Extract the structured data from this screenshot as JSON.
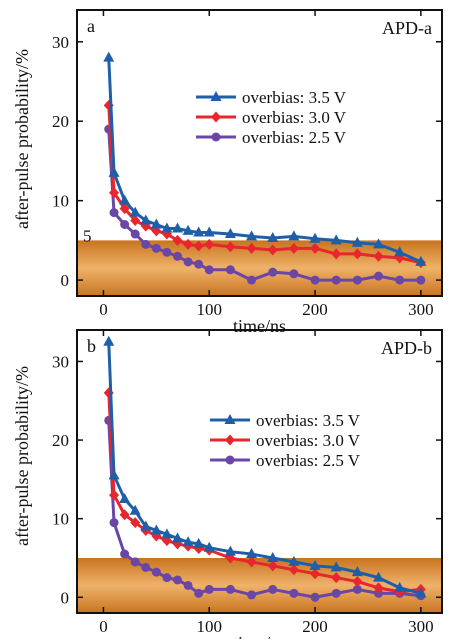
{
  "figure": {
    "ylabel": "after-pulse probability/%"
  },
  "chart_data": [
    {
      "type": "line",
      "letter": "a",
      "title": "APD-a",
      "xlabel": "time/ns",
      "ylabel": "after-pulse probability/%",
      "xlim": [
        -25,
        320
      ],
      "ylim": [
        -2,
        34
      ],
      "xticks": [
        0,
        100,
        200,
        300
      ],
      "yticks": [
        0,
        10,
        20,
        30
      ],
      "threshold": {
        "value": 5,
        "label": "5",
        "color": "#d98c3a"
      },
      "legend_position": "upper-right",
      "grid": false,
      "series": [
        {
          "name": "overbias: 3.5 V",
          "color": "#1f5fa8",
          "marker": "triangle",
          "x": [
            5,
            10,
            20,
            30,
            40,
            50,
            60,
            70,
            80,
            90,
            100,
            120,
            140,
            160,
            180,
            200,
            220,
            240,
            260,
            280,
            300
          ],
          "y": [
            28,
            13.5,
            10,
            8.5,
            7.5,
            7,
            6.5,
            6.5,
            6.2,
            6,
            6,
            5.8,
            5.5,
            5.3,
            5.5,
            5.2,
            5,
            4.7,
            4.5,
            3.5,
            2.3
          ]
        },
        {
          "name": "overbias: 3.0 V",
          "color": "#e8262e",
          "marker": "diamond",
          "x": [
            5,
            10,
            20,
            30,
            40,
            50,
            60,
            70,
            80,
            90,
            100,
            120,
            140,
            160,
            180,
            200,
            220,
            240,
            260,
            280,
            300
          ],
          "y": [
            22,
            11,
            9,
            7.5,
            6.8,
            6.2,
            5.8,
            5,
            4.5,
            4.3,
            4.5,
            4.2,
            4,
            3.8,
            4,
            4,
            3.3,
            3.3,
            3,
            2.8,
            2.2
          ]
        },
        {
          "name": "overbias: 2.5 V",
          "color": "#6a46a6",
          "marker": "circle",
          "x": [
            5,
            10,
            20,
            30,
            40,
            50,
            60,
            70,
            80,
            90,
            100,
            120,
            140,
            160,
            180,
            200,
            220,
            240,
            260,
            280,
            300
          ],
          "y": [
            19,
            8.5,
            7,
            5.8,
            4.5,
            4,
            3.5,
            3,
            2.3,
            2,
            1.3,
            1.3,
            0,
            1,
            0.8,
            0,
            0,
            0,
            0.5,
            0,
            0
          ]
        }
      ]
    },
    {
      "type": "line",
      "letter": "b",
      "title": "APD-b",
      "xlabel": "time/ns",
      "ylabel": "after-pulse probability/%",
      "xlim": [
        -25,
        320
      ],
      "ylim": [
        -2,
        34
      ],
      "xticks": [
        0,
        100,
        200,
        300
      ],
      "yticks": [
        0,
        10,
        20,
        30
      ],
      "threshold": {
        "value": 5,
        "color": "#d98c3a"
      },
      "legend_position": "upper-right",
      "grid": false,
      "series": [
        {
          "name": "overbias: 3.5 V",
          "color": "#1f5fa8",
          "marker": "triangle",
          "x": [
            5,
            10,
            20,
            30,
            40,
            50,
            60,
            70,
            80,
            90,
            100,
            120,
            140,
            160,
            180,
            200,
            220,
            240,
            260,
            280,
            300
          ],
          "y": [
            32.5,
            15.5,
            12.5,
            11,
            9,
            8.5,
            8,
            7.5,
            7,
            6.8,
            6.3,
            5.8,
            5.5,
            5,
            4.5,
            4,
            3.8,
            3.2,
            2.5,
            1.2,
            0.5
          ]
        },
        {
          "name": "overbias: 3.0 V",
          "color": "#e8262e",
          "marker": "diamond",
          "x": [
            5,
            10,
            20,
            30,
            40,
            50,
            60,
            70,
            80,
            90,
            100,
            120,
            140,
            160,
            180,
            200,
            220,
            240,
            260,
            280,
            300
          ],
          "y": [
            26,
            13,
            10.5,
            9.5,
            8.5,
            7.8,
            7.2,
            6.8,
            6.5,
            6.2,
            6,
            5,
            4.5,
            4,
            3.5,
            3,
            2.5,
            2,
            1.2,
            0.7,
            1
          ]
        },
        {
          "name": "overbias: 2.5 V",
          "color": "#6a46a6",
          "marker": "circle",
          "x": [
            5,
            10,
            20,
            30,
            40,
            50,
            60,
            70,
            80,
            90,
            100,
            120,
            140,
            160,
            180,
            200,
            220,
            240,
            260,
            280,
            300
          ],
          "y": [
            22.5,
            9.5,
            5.5,
            4.5,
            3.8,
            3.2,
            2.5,
            2.2,
            1.5,
            0.5,
            1,
            1,
            0.3,
            1,
            0.5,
            0,
            0.5,
            1,
            0.5,
            0.5,
            0.2
          ]
        }
      ]
    }
  ]
}
